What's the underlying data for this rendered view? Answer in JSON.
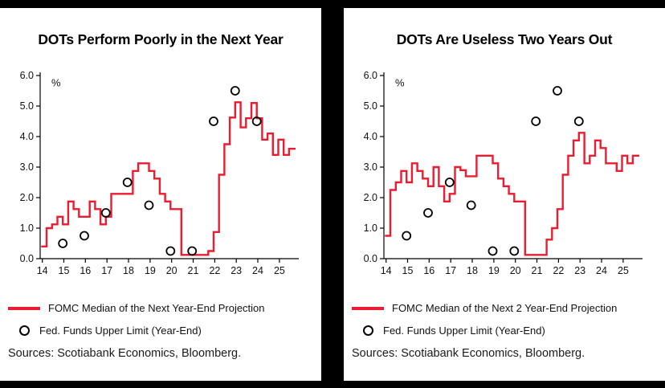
{
  "theme": {
    "canvas_bg": "#000000",
    "panel_bg": "#ffffff",
    "accent_red": "#ed1b2f",
    "text": "#111111"
  },
  "panels": [
    {
      "title": "DOTs Perform Poorly in the Next Year",
      "legend_line": "FOMC Median of the Next Year-End Projection",
      "legend_circle": "Fed. Funds Upper Limit (Year-End)",
      "sources": "Sources: Scotiabank Economics, Bloomberg."
    },
    {
      "title": "DOTs Are Useless Two Years Out",
      "legend_line": "FOMC Median of the Next 2 Year-End Projection",
      "legend_circle": "Fed. Funds Upper Limit (Year-End)",
      "sources": "Sources: Scotiabank Economics, Bloomberg."
    }
  ],
  "chart_data": [
    {
      "type": "line",
      "title": "DOTs Perform Poorly in the Next Year",
      "xlabel": "",
      "ylabel": "%",
      "xlim": [
        13.9,
        25.9
      ],
      "ylim": [
        0,
        6
      ],
      "x_end": 25.75,
      "grid": false,
      "legend_position": "below",
      "y_ticks": [
        {
          "v": 6,
          "label": "6.0"
        },
        {
          "v": 5,
          "label": "5.0"
        },
        {
          "v": 4,
          "label": "4.0"
        },
        {
          "v": 3,
          "label": "3.0"
        },
        {
          "v": 2,
          "label": "2.0"
        },
        {
          "v": 1,
          "label": "1.0"
        },
        {
          "v": 0,
          "label": "0.0"
        }
      ],
      "x_ticks": [
        {
          "v": 14,
          "label": "14"
        },
        {
          "v": 15,
          "label": "15"
        },
        {
          "v": 16,
          "label": "16"
        },
        {
          "v": 17,
          "label": "17"
        },
        {
          "v": 18,
          "label": "18"
        },
        {
          "v": 19,
          "label": "19"
        },
        {
          "v": 20,
          "label": "20"
        },
        {
          "v": 21,
          "label": "21"
        },
        {
          "v": 22,
          "label": "22"
        },
        {
          "v": 23,
          "label": "23"
        },
        {
          "v": 24,
          "label": "24"
        },
        {
          "v": 25,
          "label": "25"
        }
      ],
      "series": [
        {
          "name": "FOMC Median of the Next Year-End Projection",
          "style": "step",
          "color": "#ed1b2f",
          "x": [
            13.95,
            14.2,
            14.45,
            14.7,
            14.95,
            15.2,
            15.45,
            15.7,
            15.95,
            16.2,
            16.45,
            16.7,
            16.95,
            17.2,
            17.45,
            17.7,
            17.95,
            18.2,
            18.45,
            18.7,
            18.95,
            19.2,
            19.45,
            19.7,
            19.95,
            20.45,
            20.7,
            20.95,
            21.2,
            21.45,
            21.7,
            21.95,
            22.2,
            22.45,
            22.7,
            22.95,
            23.2,
            23.45,
            23.7,
            23.95,
            24.2,
            24.45,
            24.7,
            24.95,
            25.2,
            25.45
          ],
          "y": [
            0.4,
            1.0,
            1.125,
            1.375,
            1.125,
            1.875,
            1.625,
            1.375,
            1.375,
            1.875,
            1.625,
            1.125,
            1.375,
            2.125,
            2.125,
            2.125,
            2.125,
            2.875,
            3.125,
            3.125,
            2.875,
            2.625,
            2.125,
            1.875,
            1.625,
            0.125,
            0.125,
            0.125,
            0.125,
            0.125,
            0.25,
            0.875,
            2.75,
            3.75,
            4.625,
            5.125,
            4.3,
            4.6,
            5.1,
            4.6,
            3.9,
            4.1,
            3.4,
            3.9,
            3.4,
            3.6
          ]
        },
        {
          "name": "Fed. Funds Upper Limit (Year-End)",
          "style": "scatter-open-circle",
          "color": "#000000",
          "x": [
            14.95,
            15.95,
            16.95,
            17.95,
            18.95,
            19.95,
            20.95,
            21.95,
            22.95,
            23.95
          ],
          "y": [
            0.5,
            0.75,
            1.5,
            2.5,
            1.75,
            0.25,
            0.25,
            4.5,
            5.5,
            4.5
          ]
        }
      ]
    },
    {
      "type": "line",
      "title": "DOTs Are Useless Two Years Out",
      "xlabel": "",
      "ylabel": "%",
      "xlim": [
        13.9,
        25.9
      ],
      "ylim": [
        0,
        6
      ],
      "x_end": 25.75,
      "grid": false,
      "legend_position": "below",
      "y_ticks": [
        {
          "v": 6,
          "label": "6.0"
        },
        {
          "v": 5,
          "label": "5.0"
        },
        {
          "v": 4,
          "label": "4.0"
        },
        {
          "v": 3,
          "label": "3.0"
        },
        {
          "v": 2,
          "label": "2.0"
        },
        {
          "v": 1,
          "label": "1.0"
        },
        {
          "v": 0,
          "label": "0.0"
        }
      ],
      "x_ticks": [
        {
          "v": 14,
          "label": "14"
        },
        {
          "v": 15,
          "label": "15"
        },
        {
          "v": 16,
          "label": "16"
        },
        {
          "v": 17,
          "label": "17"
        },
        {
          "v": 18,
          "label": "18"
        },
        {
          "v": 19,
          "label": "19"
        },
        {
          "v": 20,
          "label": "20"
        },
        {
          "v": 21,
          "label": "21"
        },
        {
          "v": 22,
          "label": "22"
        },
        {
          "v": 23,
          "label": "23"
        },
        {
          "v": 24,
          "label": "24"
        },
        {
          "v": 25,
          "label": "25"
        }
      ],
      "series": [
        {
          "name": "FOMC Median of the Next 2 Year-End Projection",
          "style": "step",
          "color": "#ed1b2f",
          "x": [
            13.95,
            14.2,
            14.45,
            14.7,
            14.95,
            15.2,
            15.45,
            15.7,
            15.95,
            16.2,
            16.45,
            16.7,
            16.95,
            17.2,
            17.45,
            17.7,
            17.95,
            18.2,
            18.45,
            18.7,
            18.95,
            19.2,
            19.45,
            19.7,
            19.95,
            20.45,
            20.7,
            20.95,
            21.2,
            21.45,
            21.7,
            21.95,
            22.2,
            22.45,
            22.7,
            22.95,
            23.2,
            23.45,
            23.7,
            23.95,
            24.2,
            24.45,
            24.7,
            24.95,
            25.2,
            25.45
          ],
          "y": [
            0.75,
            2.25,
            2.5,
            2.875,
            2.5,
            3.125,
            2.875,
            2.625,
            2.375,
            3.0,
            2.375,
            1.875,
            2.125,
            3.0,
            2.9,
            2.7,
            2.7,
            3.375,
            3.375,
            3.375,
            3.125,
            2.625,
            2.375,
            2.125,
            1.875,
            0.125,
            0.125,
            0.125,
            0.125,
            0.625,
            1.0,
            1.625,
            2.75,
            3.375,
            3.875,
            4.125,
            3.125,
            3.375,
            3.875,
            3.625,
            3.125,
            3.125,
            2.875,
            3.375,
            3.125,
            3.375
          ]
        },
        {
          "name": "Fed. Funds Upper Limit (Year-End)",
          "style": "scatter-open-circle",
          "color": "#000000",
          "x": [
            14.95,
            15.95,
            16.95,
            17.95,
            18.95,
            19.95,
            20.95,
            21.95,
            22.95
          ],
          "y": [
            0.75,
            1.5,
            2.5,
            1.75,
            0.25,
            0.25,
            4.5,
            5.5,
            4.5
          ]
        }
      ]
    }
  ]
}
